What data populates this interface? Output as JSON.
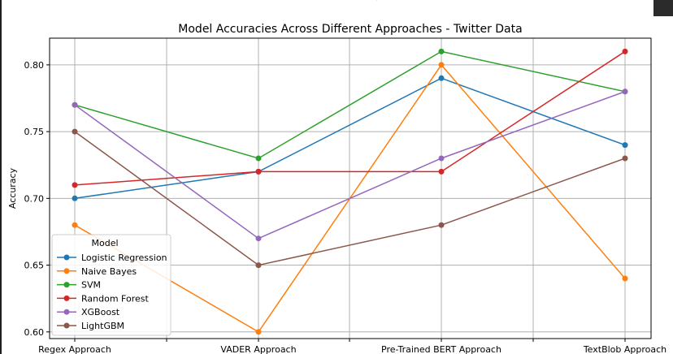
{
  "chart_data": {
    "type": "line",
    "title": "Model Accuracies Across Different Approaches - Twitter Data",
    "xlabel": "",
    "ylabel": "Accuracy",
    "categories": [
      "Regex Approach",
      "VADER Approach",
      "Pre-Trained BERT Approach",
      "TextBlob Approach"
    ],
    "ylim": [
      0.595,
      0.82
    ],
    "yticks": [
      0.6,
      0.65,
      0.7,
      0.75,
      0.8
    ],
    "ytick_labels": [
      "0.60",
      "0.65",
      "0.70",
      "0.75",
      "0.80"
    ],
    "grid": true,
    "legend": {
      "title": "Model",
      "placement": "lower-left"
    },
    "series": [
      {
        "name": "Logistic Regression",
        "color": "#1f77b4",
        "values": [
          0.7,
          0.72,
          0.79,
          0.74
        ]
      },
      {
        "name": "Naive Bayes",
        "color": "#ff7f0e",
        "values": [
          0.68,
          0.6,
          0.8,
          0.64
        ]
      },
      {
        "name": "SVM",
        "color": "#2ca02c",
        "values": [
          0.77,
          0.73,
          0.81,
          0.78
        ]
      },
      {
        "name": "Random Forest",
        "color": "#d62728",
        "values": [
          0.71,
          0.72,
          0.72,
          0.81
        ]
      },
      {
        "name": "XGBoost",
        "color": "#9467bd",
        "values": [
          0.77,
          0.67,
          0.73,
          0.78
        ]
      },
      {
        "name": "LightGBM",
        "color": "#8c564b",
        "values": [
          0.75,
          0.65,
          0.68,
          0.73
        ]
      }
    ]
  },
  "page": {
    "cut_text": "Pr"
  }
}
